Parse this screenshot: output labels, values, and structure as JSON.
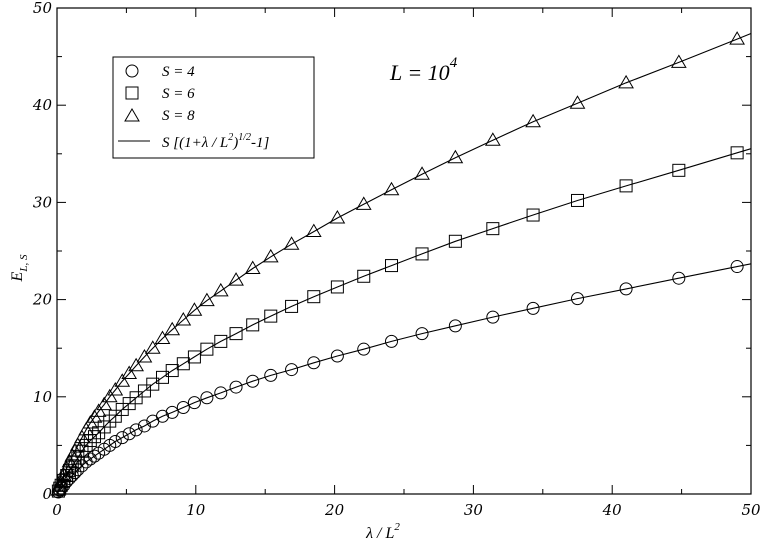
{
  "chart_data": {
    "type": "scatter",
    "xlabel": "λ / L",
    "xlabel_sup": "2",
    "ylabel": "E",
    "ylabel_sub": "L, S",
    "xlim": [
      0,
      50
    ],
    "ylim": [
      0,
      50
    ],
    "xticks": [
      0,
      10,
      20,
      30,
      40,
      50
    ],
    "yticks": [
      0,
      10,
      20,
      30,
      40,
      50
    ],
    "grid": false,
    "legend_position": "top-left",
    "annotation": {
      "text": "L = 10",
      "sup": "4"
    },
    "series": [
      {
        "name": "S = 4",
        "marker": "circle",
        "S": 4,
        "x": [
          0.1,
          0.2,
          0.3,
          0.5,
          0.7,
          0.9,
          1.1,
          1.3,
          1.5,
          1.8,
          2.1,
          2.4,
          2.7,
          3.0,
          3.4,
          3.8,
          4.2,
          4.7,
          5.2,
          5.7,
          6.3,
          6.9,
          7.6,
          8.3,
          9.1,
          9.9,
          10.8,
          11.8,
          12.9,
          14.1,
          15.4,
          16.9,
          18.5,
          20.2,
          22.1,
          24.1,
          26.3,
          28.7,
          31.4,
          34.3,
          37.5,
          41.0,
          44.8,
          49.0
        ],
        "y": [
          0.2,
          0.4,
          0.6,
          0.9,
          1.3,
          1.6,
          1.9,
          2.2,
          2.5,
          2.9,
          3.3,
          3.6,
          3.9,
          4.2,
          4.6,
          5.0,
          5.4,
          5.8,
          6.2,
          6.6,
          7.0,
          7.5,
          8.0,
          8.4,
          8.9,
          9.4,
          9.9,
          10.4,
          11.0,
          11.6,
          12.2,
          12.8,
          13.5,
          14.2,
          14.9,
          15.7,
          16.5,
          17.3,
          18.2,
          19.1,
          20.1,
          21.1,
          22.2,
          23.4
        ]
      },
      {
        "name": "S = 6",
        "marker": "square",
        "S": 6,
        "x": [
          0.1,
          0.2,
          0.3,
          0.5,
          0.7,
          0.9,
          1.1,
          1.3,
          1.5,
          1.8,
          2.1,
          2.4,
          2.7,
          3.0,
          3.4,
          3.8,
          4.2,
          4.7,
          5.2,
          5.7,
          6.3,
          6.9,
          7.6,
          8.3,
          9.1,
          9.9,
          10.8,
          11.8,
          12.9,
          14.1,
          15.4,
          16.9,
          18.5,
          20.2,
          22.1,
          24.1,
          26.3,
          28.7,
          31.4,
          34.3,
          37.5,
          41.0,
          44.8,
          49.0
        ],
        "y": [
          0.3,
          0.6,
          0.9,
          1.4,
          1.9,
          2.4,
          2.9,
          3.3,
          3.7,
          4.4,
          5.0,
          5.5,
          5.9,
          6.3,
          6.9,
          7.5,
          8.0,
          8.7,
          9.3,
          9.9,
          10.6,
          11.3,
          12.0,
          12.7,
          13.4,
          14.1,
          14.9,
          15.7,
          16.5,
          17.4,
          18.3,
          19.3,
          20.3,
          21.3,
          22.4,
          23.5,
          24.7,
          26.0,
          27.3,
          28.7,
          30.2,
          31.7,
          33.3,
          35.1
        ]
      },
      {
        "name": "S = 8",
        "marker": "triangle",
        "S": 8,
        "x": [
          0.1,
          0.2,
          0.3,
          0.5,
          0.7,
          0.9,
          1.1,
          1.3,
          1.5,
          1.8,
          2.1,
          2.4,
          2.7,
          3.0,
          3.4,
          3.8,
          4.2,
          4.7,
          5.2,
          5.7,
          6.3,
          6.9,
          7.6,
          8.3,
          9.1,
          9.9,
          10.8,
          11.8,
          12.9,
          14.1,
          15.4,
          16.9,
          18.5,
          20.2,
          22.1,
          24.1,
          26.3,
          28.7,
          31.4,
          34.3,
          37.5,
          41.0,
          44.8,
          49.0
        ],
        "y": [
          0.4,
          0.8,
          1.2,
          1.9,
          2.6,
          3.3,
          3.9,
          4.4,
          5.0,
          5.8,
          6.6,
          7.3,
          7.9,
          8.5,
          9.2,
          10.0,
          10.7,
          11.6,
          12.4,
          13.2,
          14.1,
          15.0,
          16.0,
          16.9,
          17.9,
          18.9,
          19.9,
          20.9,
          22.0,
          23.2,
          24.4,
          25.7,
          27.0,
          28.4,
          29.8,
          31.3,
          32.9,
          34.6,
          36.4,
          38.3,
          40.2,
          42.3,
          44.4,
          46.8
        ]
      }
    ],
    "fit_legend": {
      "text": "S [(1+λ / L",
      "sup1": "2",
      "mid": ")",
      "sup2": "1/2",
      "tail": "-1]"
    }
  }
}
